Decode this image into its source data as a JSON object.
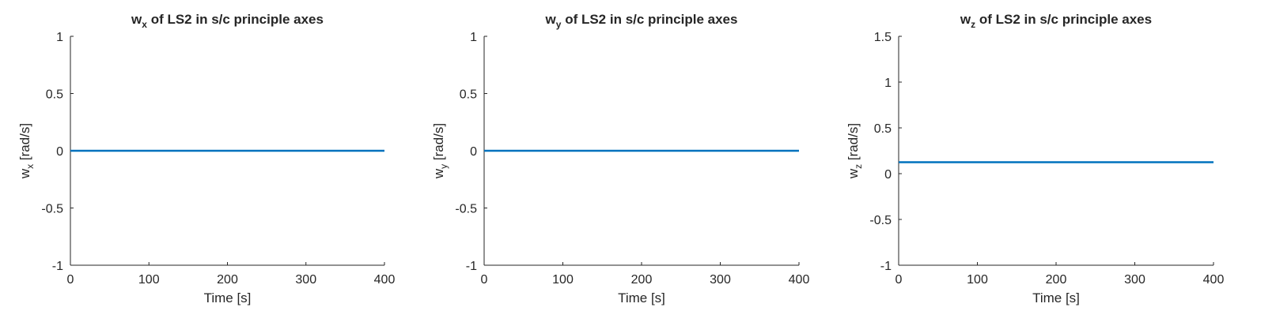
{
  "chart_data": [
    {
      "type": "line",
      "title": {
        "base": "w",
        "sub": "x",
        "rest": " of LS2 in s/c principle axes"
      },
      "xlabel": "Time [s]",
      "ylabel": {
        "base": "w",
        "sub": "x",
        "rest": " [rad/s]"
      },
      "xlim": [
        0,
        400
      ],
      "ylim": [
        -1,
        1
      ],
      "xticks": [
        0,
        100,
        200,
        300,
        400
      ],
      "xtick_labels": [
        "0",
        "100",
        "200",
        "300",
        "400"
      ],
      "yticks": [
        -1,
        -0.5,
        0,
        0.5,
        1
      ],
      "ytick_labels": [
        "-1",
        "-0.5",
        "0",
        "0.5",
        "1"
      ],
      "grid": false,
      "color": "#0072BD",
      "series": [
        {
          "x": [
            0,
            400
          ],
          "y": [
            0,
            0
          ]
        }
      ]
    },
    {
      "type": "line",
      "title": {
        "base": "w",
        "sub": "y",
        "rest": " of LS2 in s/c principle axes"
      },
      "xlabel": "Time [s]",
      "ylabel": {
        "base": "w",
        "sub": "y",
        "rest": " [rad/s]"
      },
      "xlim": [
        0,
        400
      ],
      "ylim": [
        -1,
        1
      ],
      "xticks": [
        0,
        100,
        200,
        300,
        400
      ],
      "xtick_labels": [
        "0",
        "100",
        "200",
        "300",
        "400"
      ],
      "yticks": [
        -1,
        -0.5,
        0,
        0.5,
        1
      ],
      "ytick_labels": [
        "-1",
        "-0.5",
        "0",
        "0.5",
        "1"
      ],
      "grid": false,
      "color": "#0072BD",
      "series": [
        {
          "x": [
            0,
            400
          ],
          "y": [
            0,
            0
          ]
        }
      ]
    },
    {
      "type": "line",
      "title": {
        "base": "w",
        "sub": "z",
        "rest": " of LS2 in s/c principle axes"
      },
      "xlabel": "Time [s]",
      "ylabel": {
        "base": "w",
        "sub": "z",
        "rest": " [rad/s]"
      },
      "xlim": [
        0,
        400
      ],
      "ylim": [
        -1,
        1.5
      ],
      "xticks": [
        0,
        100,
        200,
        300,
        400
      ],
      "xtick_labels": [
        "0",
        "100",
        "200",
        "300",
        "400"
      ],
      "yticks": [
        -1,
        -0.5,
        0,
        0.5,
        1,
        1.5
      ],
      "ytick_labels": [
        "-1",
        "-0.5",
        "0",
        "0.5",
        "1",
        "1.5"
      ],
      "grid": false,
      "color": "#0072BD",
      "series": [
        {
          "x": [
            0,
            400
          ],
          "y": [
            0.125,
            0.125
          ]
        }
      ]
    }
  ]
}
